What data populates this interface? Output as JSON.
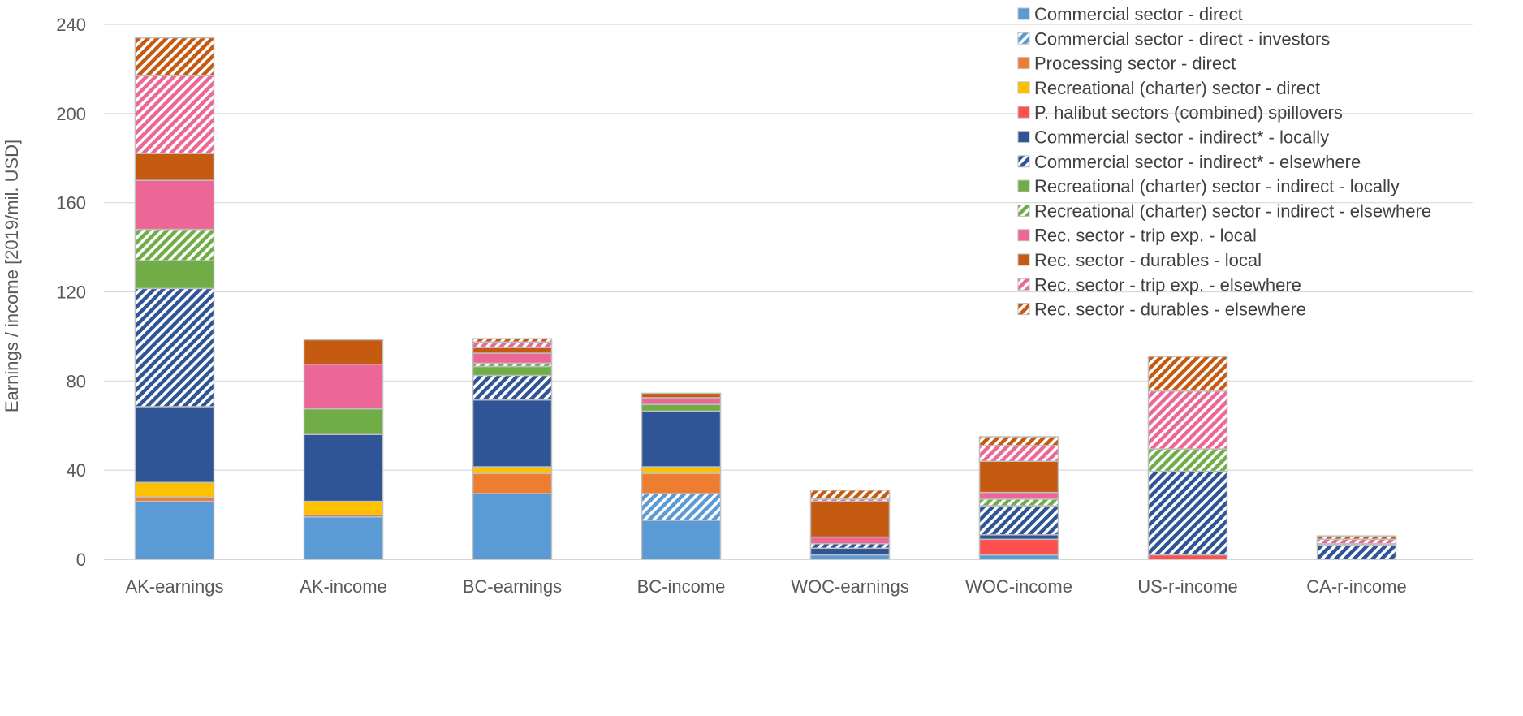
{
  "chart_data": {
    "type": "bar",
    "stacked": true,
    "title": "",
    "xlabel": "",
    "ylabel": "Earnings / income [2019/mil. USD]",
    "ylim": [
      0,
      240
    ],
    "yticks": [
      "0",
      "40",
      "80",
      "120",
      "160",
      "200",
      "240"
    ],
    "grid": true,
    "legend_position": "top-right",
    "categories": [
      "AK-earnings",
      "AK-income",
      "BC-earnings",
      "BC-income",
      "WOC-earnings",
      "WOC-income",
      "US-r-income",
      "CA-r-income"
    ],
    "series": [
      {
        "name": "Commercial sector - direct",
        "color": "#5b9bd5",
        "pattern": "solid",
        "values": [
          26,
          19,
          29.5,
          17.5,
          2,
          2,
          0,
          0
        ]
      },
      {
        "name": "Commercial sector - direct - investors",
        "color": "#5b9bd5",
        "pattern": "hatched",
        "values": [
          0,
          0,
          0,
          12,
          0,
          0,
          0,
          0
        ]
      },
      {
        "name": "Processing sector - direct",
        "color": "#ed7d31",
        "pattern": "solid",
        "values": [
          2,
          1,
          9,
          9,
          0,
          0,
          0,
          0
        ]
      },
      {
        "name": "Recreational (charter) sector - direct",
        "color": "#ffc000",
        "pattern": "solid",
        "values": [
          6.5,
          6,
          3,
          3,
          0,
          0,
          0,
          0
        ]
      },
      {
        "name": "P. halibut sectors (combined) spillovers",
        "color": "#ff5050",
        "pattern": "solid",
        "values": [
          0,
          0,
          0,
          0,
          0,
          7,
          2,
          0
        ]
      },
      {
        "name": "Commercial sector - indirect* - locally",
        "color": "#2f5597",
        "pattern": "solid",
        "values": [
          34,
          30,
          30,
          25,
          3,
          2,
          0,
          0
        ]
      },
      {
        "name": "Commercial sector - indirect* - elsewhere",
        "color": "#2f5597",
        "pattern": "hatched",
        "values": [
          53,
          0,
          11,
          0,
          2,
          13,
          37.5,
          6.5
        ]
      },
      {
        "name": "Recreational (charter) sector - indirect - locally",
        "color": "#70ad47",
        "pattern": "solid",
        "values": [
          12.5,
          11.5,
          4,
          3,
          0,
          0,
          0,
          0
        ]
      },
      {
        "name": "Recreational (charter) sector - indirect - elsewhere",
        "color": "#70ad47",
        "pattern": "hatched",
        "values": [
          14,
          0,
          1.5,
          0,
          0,
          3,
          10,
          0.5
        ]
      },
      {
        "name": "Rec. sector - trip exp. - local",
        "color": "#ec6796",
        "pattern": "solid",
        "values": [
          22,
          20,
          4.5,
          3,
          3,
          3,
          0,
          0
        ]
      },
      {
        "name": "Rec. sector - durables - local",
        "color": "#c55a11",
        "pattern": "solid",
        "values": [
          12,
          11,
          2.5,
          2,
          16,
          14,
          0,
          0
        ]
      },
      {
        "name": "Rec. sector - trip exp. - elsewhere",
        "color": "#ec6796",
        "pattern": "hatched",
        "values": [
          35,
          0,
          2.5,
          0,
          1,
          7,
          26,
          2
        ]
      },
      {
        "name": "Rec. sector - durables - elsewhere",
        "color": "#c55a11",
        "pattern": "hatched",
        "values": [
          17,
          0,
          1.5,
          0,
          4,
          4,
          15.5,
          1.5
        ]
      }
    ]
  }
}
